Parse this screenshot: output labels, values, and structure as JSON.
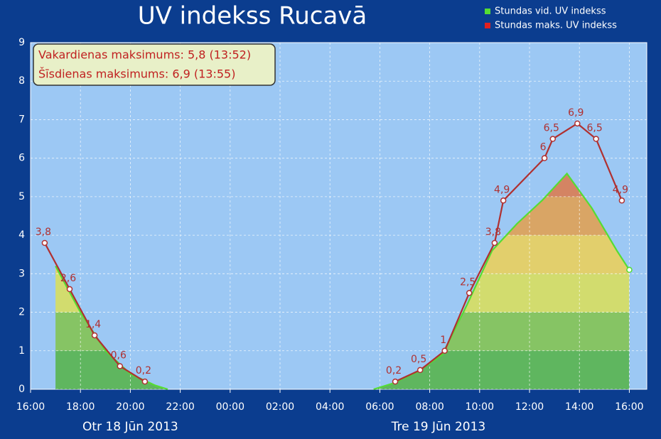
{
  "chart_data": {
    "type": "line",
    "title": "UV indekss Rucavā",
    "annotations": [
      "Vakardienas maksimums: 5,8 (13:52)",
      "Šīsdienas maksimums: 6,9 (13:55)"
    ],
    "xlim": [
      "2013-06-18T16:00",
      "2013-06-19T16:42"
    ],
    "xticks": [
      {
        "value": "2013-06-18T16:00",
        "label": "16:00"
      },
      {
        "value": "2013-06-18T18:00",
        "label": "18:00"
      },
      {
        "value": "2013-06-18T20:00",
        "label": "20:00"
      },
      {
        "value": "2013-06-18T22:00",
        "label": "22:00"
      },
      {
        "value": "2013-06-19T00:00",
        "label": "00:00"
      },
      {
        "value": "2013-06-19T02:00",
        "label": "02:00"
      },
      {
        "value": "2013-06-19T04:00",
        "label": "04:00"
      },
      {
        "value": "2013-06-19T06:00",
        "label": "06:00"
      },
      {
        "value": "2013-06-19T08:00",
        "label": "08:00"
      },
      {
        "value": "2013-06-19T10:00",
        "label": "10:00"
      },
      {
        "value": "2013-06-19T12:00",
        "label": "12:00"
      },
      {
        "value": "2013-06-19T14:00",
        "label": "14:00"
      },
      {
        "value": "2013-06-19T16:00",
        "label": "16:00"
      }
    ],
    "date_labels": [
      {
        "value": "2013-06-18",
        "label": "Otr 18 Jūn 2013"
      },
      {
        "value": "2013-06-19",
        "label": "Tre 19 Jūn 2013"
      }
    ],
    "ylim": [
      0,
      9
    ],
    "yticks": [
      0,
      1,
      2,
      3,
      4,
      5,
      6,
      7,
      8,
      9
    ],
    "grid": true,
    "band_colors": [
      "#5fb65f",
      "#86c464",
      "#d2dc6e",
      "#e2cf6c",
      "#d9a565",
      "#d48463",
      "#cc6e60",
      "#c85f5f",
      "#c05050"
    ],
    "legend": "top-right",
    "series": [
      {
        "name": "Stundas vid. UV indekss",
        "color": "#55dd33",
        "x": [
          "2013-06-18T17:00",
          "2013-06-18T18:00",
          "2013-06-18T19:00",
          "2013-06-18T20:00",
          "2013-06-18T21:00",
          "2013-06-18T21:30",
          "2013-06-19T02:00",
          "2013-06-19T05:45",
          "2013-06-19T06:30",
          "2013-06-19T07:30",
          "2013-06-19T08:30",
          "2013-06-19T09:30",
          "2013-06-19T10:30",
          "2013-06-19T11:30",
          "2013-06-19T12:30",
          "2013-06-19T13:30",
          "2013-06-19T14:30",
          "2013-06-19T15:30",
          "2013-06-19T16:00"
        ],
        "values": [
          3.2,
          2.0,
          1.0,
          0.4,
          0.1,
          0.0,
          null,
          0.0,
          0.15,
          0.45,
          0.9,
          2.2,
          3.6,
          4.3,
          4.9,
          5.6,
          4.7,
          3.6,
          3.1
        ]
      },
      {
        "name": "Stundas maks. UV indekss",
        "color": "#b03030",
        "x": [
          "2013-06-18T16:34",
          "2013-06-18T17:34",
          "2013-06-18T18:34",
          "2013-06-18T19:35",
          "2013-06-18T20:35",
          "2013-06-19T02:00",
          "2013-06-19T06:37",
          "2013-06-19T07:37",
          "2013-06-19T08:36",
          "2013-06-19T09:35",
          "2013-06-19T10:36",
          "2013-06-19T10:57",
          "2013-06-19T12:36",
          "2013-06-19T12:56",
          "2013-06-19T13:55",
          "2013-06-19T14:40",
          "2013-06-19T15:42"
        ],
        "values": [
          3.8,
          2.6,
          1.4,
          0.6,
          0.2,
          null,
          0.2,
          0.5,
          1,
          2.5,
          3.8,
          4.9,
          6,
          6.5,
          6.9,
          6.5,
          4.9
        ],
        "value_labels": [
          "3,8",
          "2,6",
          "1,4",
          "0,6",
          "0,2",
          null,
          "0,2",
          "0,5",
          "1",
          "2,5",
          "3,8",
          "4,9",
          "6",
          "6,5",
          "6,9",
          "6,5",
          "4,9"
        ]
      }
    ]
  }
}
